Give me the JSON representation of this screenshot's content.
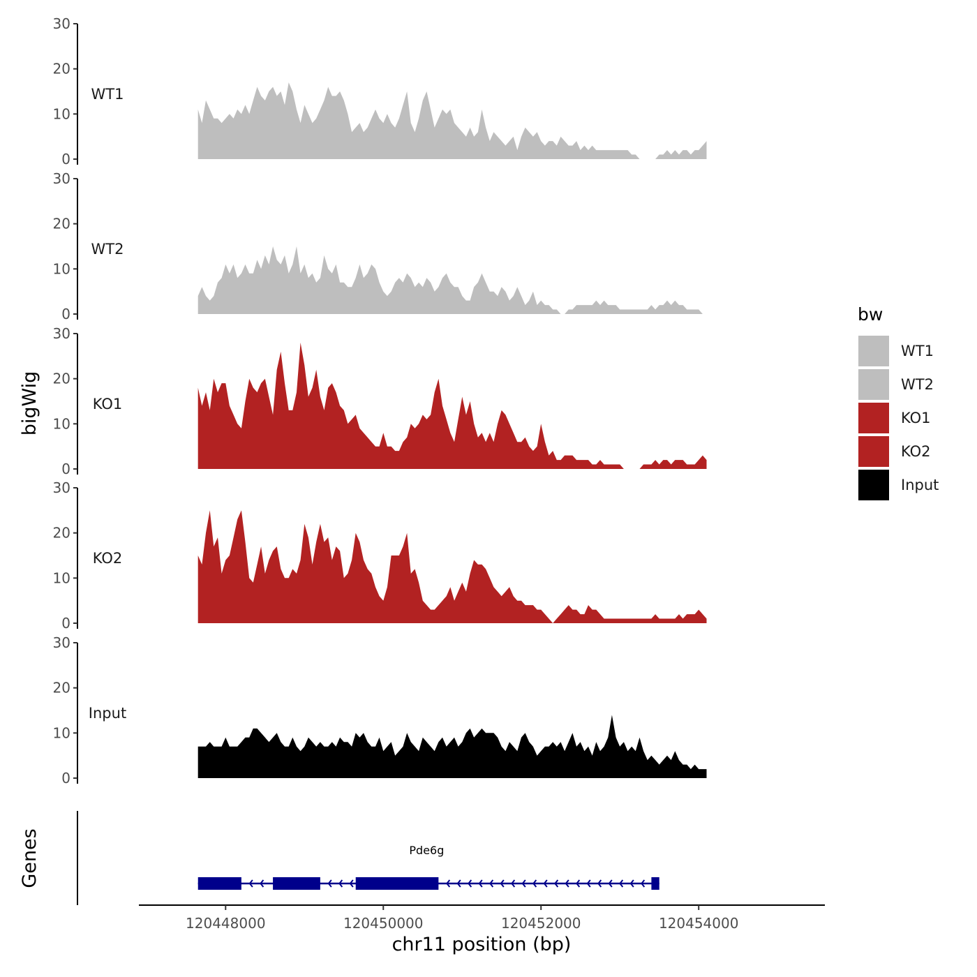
{
  "chart_data": {
    "type": "area",
    "ylabel": "bigWig",
    "xlabel": "chr11 position (bp)",
    "genes_label": "Genes",
    "xlim": [
      120446900,
      120455600
    ],
    "x_ticks": [
      120448000,
      120450000,
      120452000,
      120454000
    ],
    "x_tick_labels": [
      "120448000",
      "120450000",
      "120452000",
      "120454000"
    ],
    "ylim": [
      0,
      30
    ],
    "y_ticks": [
      0,
      10,
      20,
      30
    ],
    "y_tick_labels": [
      "0",
      "10",
      "20",
      "30"
    ],
    "x_start": 120447650,
    "x_step": 50,
    "legend": {
      "title": "bw",
      "entries": [
        {
          "label": "WT1",
          "color": "#bebebe"
        },
        {
          "label": "WT2",
          "color": "#bebebe"
        },
        {
          "label": "KO1",
          "color": "#b22222"
        },
        {
          "label": "KO2",
          "color": "#b22222"
        },
        {
          "label": "Input",
          "color": "#000000"
        }
      ]
    },
    "series": [
      {
        "name": "WT1",
        "color": "#bebebe",
        "values": [
          11,
          8,
          13,
          11,
          9,
          9,
          8,
          9,
          10,
          9,
          11,
          10,
          12,
          10,
          13,
          16,
          14,
          13,
          15,
          16,
          14,
          15,
          12,
          17,
          15,
          11,
          8,
          12,
          10,
          8,
          9,
          11,
          13,
          16,
          14,
          14,
          15,
          13,
          10,
          6,
          7,
          8,
          6,
          7,
          9,
          11,
          9,
          8,
          10,
          8,
          7,
          9,
          12,
          15,
          8,
          6,
          9,
          13,
          15,
          11,
          7,
          9,
          11,
          10,
          11,
          8,
          7,
          6,
          5,
          7,
          5,
          6,
          11,
          7,
          4,
          6,
          5,
          4,
          3,
          4,
          5,
          2,
          5,
          7,
          6,
          5,
          6,
          4,
          3,
          4,
          4,
          3,
          5,
          4,
          3,
          3,
          4,
          2,
          3,
          2,
          3,
          2,
          2,
          2,
          2,
          2,
          2,
          2,
          2,
          2,
          1,
          1,
          0,
          0,
          0,
          0,
          0,
          1,
          1,
          2,
          1,
          2,
          1,
          2,
          2,
          1,
          2,
          2,
          3,
          4
        ]
      },
      {
        "name": "WT2",
        "color": "#bebebe",
        "values": [
          4,
          6,
          4,
          3,
          4,
          7,
          8,
          11,
          9,
          11,
          8,
          9,
          11,
          9,
          9,
          12,
          10,
          13,
          11,
          15,
          12,
          11,
          13,
          9,
          11,
          15,
          9,
          11,
          8,
          9,
          7,
          8,
          13,
          10,
          9,
          11,
          7,
          7,
          6,
          6,
          8,
          11,
          8,
          9,
          11,
          10,
          7,
          5,
          4,
          5,
          7,
          8,
          7,
          9,
          8,
          6,
          7,
          6,
          8,
          7,
          5,
          6,
          8,
          9,
          7,
          6,
          6,
          4,
          3,
          3,
          6,
          7,
          9,
          7,
          5,
          5,
          4,
          6,
          5,
          3,
          4,
          6,
          4,
          2,
          3,
          5,
          2,
          3,
          2,
          2,
          1,
          1,
          0,
          0,
          1,
          1,
          2,
          2,
          2,
          2,
          2,
          3,
          2,
          3,
          2,
          2,
          2,
          1,
          1,
          1,
          1,
          1,
          1,
          1,
          1,
          2,
          1,
          2,
          2,
          3,
          2,
          3,
          2,
          2,
          1,
          1,
          1,
          1,
          0,
          0
        ]
      },
      {
        "name": "KO1",
        "color": "#b22222",
        "values": [
          18,
          14,
          17,
          13,
          20,
          17,
          19,
          19,
          14,
          12,
          10,
          9,
          15,
          20,
          18,
          17,
          19,
          20,
          16,
          12,
          22,
          26,
          19,
          13,
          13,
          17,
          28,
          23,
          16,
          18,
          22,
          16,
          13,
          18,
          19,
          17,
          14,
          13,
          10,
          11,
          12,
          9,
          8,
          7,
          6,
          5,
          5,
          8,
          5,
          5,
          4,
          4,
          6,
          7,
          10,
          9,
          10,
          12,
          11,
          12,
          17,
          20,
          14,
          11,
          8,
          6,
          11,
          16,
          12,
          15,
          10,
          7,
          8,
          6,
          8,
          6,
          10,
          13,
          12,
          10,
          8,
          6,
          6,
          7,
          5,
          4,
          5,
          10,
          6,
          3,
          4,
          2,
          2,
          3,
          3,
          3,
          2,
          2,
          2,
          2,
          1,
          1,
          2,
          1,
          1,
          1,
          1,
          1,
          0,
          0,
          0,
          0,
          0,
          1,
          1,
          1,
          2,
          1,
          2,
          2,
          1,
          2,
          2,
          2,
          1,
          1,
          1,
          2,
          3,
          2
        ]
      },
      {
        "name": "KO2",
        "color": "#b22222",
        "values": [
          15,
          13,
          20,
          25,
          17,
          19,
          11,
          14,
          15,
          19,
          23,
          25,
          18,
          10,
          9,
          13,
          17,
          11,
          14,
          16,
          17,
          12,
          10,
          10,
          12,
          11,
          14,
          22,
          19,
          13,
          18,
          22,
          18,
          19,
          14,
          17,
          16,
          10,
          11,
          14,
          20,
          18,
          14,
          12,
          11,
          8,
          6,
          5,
          8,
          15,
          15,
          15,
          17,
          20,
          11,
          12,
          9,
          5,
          4,
          3,
          3,
          4,
          5,
          6,
          8,
          5,
          7,
          9,
          7,
          11,
          14,
          13,
          13,
          12,
          10,
          8,
          7,
          6,
          7,
          8,
          6,
          5,
          5,
          4,
          4,
          4,
          3,
          3,
          2,
          1,
          0,
          1,
          2,
          3,
          4,
          3,
          3,
          2,
          2,
          4,
          3,
          3,
          2,
          1,
          1,
          1,
          1,
          1,
          1,
          1,
          1,
          1,
          1,
          1,
          1,
          1,
          2,
          1,
          1,
          1,
          1,
          1,
          2,
          1,
          2,
          2,
          2,
          3,
          2,
          1
        ]
      },
      {
        "name": "Input",
        "color": "#000000",
        "values": [
          7,
          7,
          7,
          8,
          7,
          7,
          7,
          9,
          7,
          7,
          7,
          8,
          9,
          9,
          11,
          11,
          10,
          9,
          8,
          9,
          10,
          8,
          7,
          7,
          9,
          7,
          6,
          7,
          9,
          8,
          7,
          8,
          7,
          7,
          8,
          7,
          9,
          8,
          8,
          7,
          10,
          9,
          10,
          8,
          7,
          7,
          9,
          6,
          7,
          8,
          5,
          6,
          7,
          10,
          8,
          7,
          6,
          9,
          8,
          7,
          6,
          8,
          9,
          7,
          8,
          9,
          7,
          8,
          10,
          11,
          9,
          10,
          11,
          10,
          10,
          10,
          9,
          7,
          6,
          8,
          7,
          6,
          9,
          10,
          8,
          7,
          5,
          6,
          7,
          7,
          8,
          7,
          8,
          6,
          8,
          10,
          7,
          8,
          6,
          7,
          5,
          8,
          6,
          7,
          9,
          14,
          9,
          7,
          8,
          6,
          7,
          6,
          9,
          6,
          4,
          5,
          4,
          3,
          4,
          5,
          4,
          6,
          4,
          3,
          3,
          2,
          3,
          2,
          2,
          2
        ]
      }
    ],
    "gene": {
      "name": "Pde6g",
      "color": "#00008b",
      "strand": "-",
      "start": 120447650,
      "end": 120453500,
      "exons": [
        [
          120447650,
          120448200
        ],
        [
          120448600,
          120449200
        ],
        [
          120449650,
          120450700
        ],
        [
          120453400,
          120453500
        ]
      ]
    }
  }
}
